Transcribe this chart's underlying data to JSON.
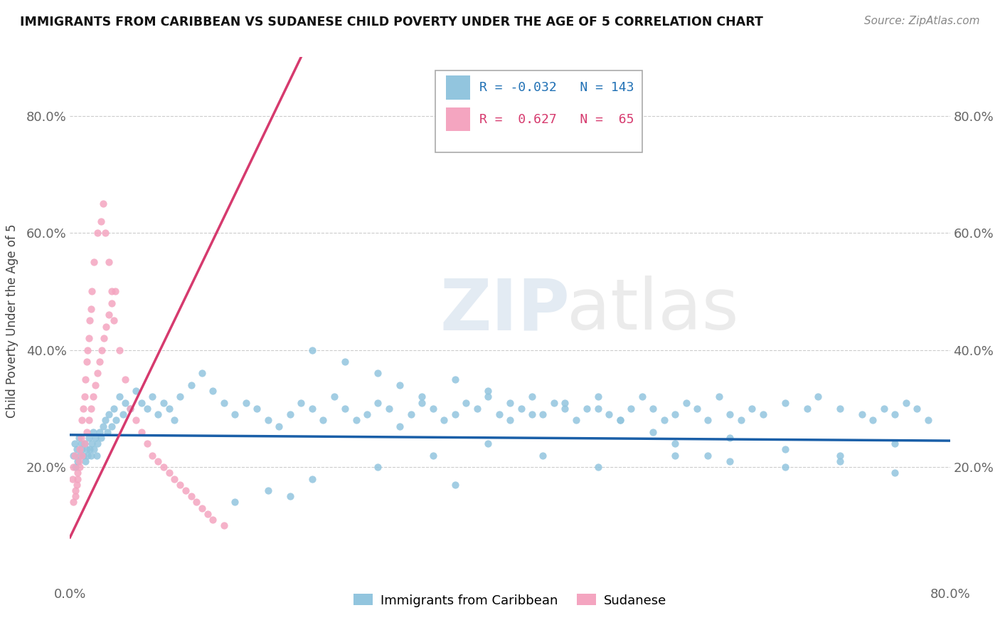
{
  "title": "IMMIGRANTS FROM CARIBBEAN VS SUDANESE CHILD POVERTY UNDER THE AGE OF 5 CORRELATION CHART",
  "source": "Source: ZipAtlas.com",
  "ylabel": "Child Poverty Under the Age of 5",
  "xmin": 0.0,
  "xmax": 0.8,
  "ymin": 0.0,
  "ymax": 0.9,
  "caribbean_color": "#92c5de",
  "sudanese_color": "#f4a5c0",
  "caribbean_line_color": "#1a5fa8",
  "sudanese_line_color": "#d63a6e",
  "R_caribbean": -0.032,
  "N_caribbean": 143,
  "R_sudanese": 0.627,
  "N_sudanese": 65,
  "watermark_zip": "ZIP",
  "watermark_atlas": "atlas",
  "legend_entries": [
    "Immigrants from Caribbean",
    "Sudanese"
  ],
  "car_x": [
    0.003,
    0.004,
    0.005,
    0.006,
    0.007,
    0.008,
    0.009,
    0.01,
    0.011,
    0.012,
    0.013,
    0.014,
    0.015,
    0.016,
    0.017,
    0.018,
    0.019,
    0.02,
    0.021,
    0.022,
    0.023,
    0.024,
    0.025,
    0.027,
    0.028,
    0.03,
    0.032,
    0.034,
    0.035,
    0.038,
    0.04,
    0.042,
    0.045,
    0.048,
    0.05,
    0.055,
    0.06,
    0.065,
    0.07,
    0.075,
    0.08,
    0.085,
    0.09,
    0.095,
    0.1,
    0.11,
    0.12,
    0.13,
    0.14,
    0.15,
    0.16,
    0.17,
    0.18,
    0.19,
    0.2,
    0.21,
    0.22,
    0.23,
    0.24,
    0.25,
    0.26,
    0.27,
    0.28,
    0.29,
    0.3,
    0.31,
    0.32,
    0.33,
    0.34,
    0.35,
    0.36,
    0.37,
    0.38,
    0.39,
    0.4,
    0.41,
    0.42,
    0.43,
    0.44,
    0.45,
    0.46,
    0.47,
    0.48,
    0.49,
    0.5,
    0.51,
    0.52,
    0.53,
    0.54,
    0.55,
    0.56,
    0.57,
    0.58,
    0.59,
    0.6,
    0.61,
    0.62,
    0.63,
    0.65,
    0.67,
    0.68,
    0.7,
    0.72,
    0.73,
    0.74,
    0.75,
    0.76,
    0.77,
    0.78,
    0.22,
    0.25,
    0.28,
    0.3,
    0.32,
    0.35,
    0.38,
    0.4,
    0.42,
    0.45,
    0.48,
    0.5,
    0.53,
    0.55,
    0.58,
    0.6,
    0.65,
    0.7,
    0.75,
    0.55,
    0.6,
    0.65,
    0.7,
    0.75,
    0.35,
    0.2,
    0.15,
    0.18,
    0.22,
    0.28,
    0.33,
    0.38,
    0.43,
    0.48
  ],
  "car_y": [
    0.22,
    0.24,
    0.2,
    0.23,
    0.21,
    0.25,
    0.22,
    0.24,
    0.23,
    0.22,
    0.24,
    0.21,
    0.23,
    0.22,
    0.25,
    0.23,
    0.22,
    0.24,
    0.26,
    0.23,
    0.25,
    0.22,
    0.24,
    0.26,
    0.25,
    0.27,
    0.28,
    0.26,
    0.29,
    0.27,
    0.3,
    0.28,
    0.32,
    0.29,
    0.31,
    0.3,
    0.33,
    0.31,
    0.3,
    0.32,
    0.29,
    0.31,
    0.3,
    0.28,
    0.32,
    0.34,
    0.36,
    0.33,
    0.31,
    0.29,
    0.31,
    0.3,
    0.28,
    0.27,
    0.29,
    0.31,
    0.3,
    0.28,
    0.32,
    0.3,
    0.28,
    0.29,
    0.31,
    0.3,
    0.27,
    0.29,
    0.31,
    0.3,
    0.28,
    0.29,
    0.31,
    0.3,
    0.32,
    0.29,
    0.28,
    0.3,
    0.32,
    0.29,
    0.31,
    0.3,
    0.28,
    0.3,
    0.32,
    0.29,
    0.28,
    0.3,
    0.32,
    0.3,
    0.28,
    0.29,
    0.31,
    0.3,
    0.28,
    0.32,
    0.29,
    0.28,
    0.3,
    0.29,
    0.31,
    0.3,
    0.32,
    0.3,
    0.29,
    0.28,
    0.3,
    0.29,
    0.31,
    0.3,
    0.28,
    0.4,
    0.38,
    0.36,
    0.34,
    0.32,
    0.35,
    0.33,
    0.31,
    0.29,
    0.31,
    0.3,
    0.28,
    0.26,
    0.24,
    0.22,
    0.21,
    0.2,
    0.22,
    0.24,
    0.22,
    0.25,
    0.23,
    0.21,
    0.19,
    0.17,
    0.15,
    0.14,
    0.16,
    0.18,
    0.2,
    0.22,
    0.24,
    0.22,
    0.2
  ],
  "sud_x": [
    0.002,
    0.003,
    0.004,
    0.005,
    0.006,
    0.007,
    0.008,
    0.009,
    0.01,
    0.011,
    0.012,
    0.013,
    0.014,
    0.015,
    0.016,
    0.017,
    0.018,
    0.019,
    0.02,
    0.022,
    0.025,
    0.028,
    0.03,
    0.032,
    0.035,
    0.038,
    0.04,
    0.045,
    0.05,
    0.055,
    0.06,
    0.065,
    0.07,
    0.075,
    0.08,
    0.085,
    0.09,
    0.095,
    0.1,
    0.105,
    0.11,
    0.115,
    0.12,
    0.125,
    0.13,
    0.14,
    0.003,
    0.005,
    0.007,
    0.009,
    0.011,
    0.013,
    0.015,
    0.017,
    0.019,
    0.021,
    0.023,
    0.025,
    0.027,
    0.029,
    0.031,
    0.033,
    0.035,
    0.038,
    0.041
  ],
  "sud_y": [
    0.18,
    0.2,
    0.22,
    0.15,
    0.17,
    0.19,
    0.21,
    0.23,
    0.25,
    0.28,
    0.3,
    0.32,
    0.35,
    0.38,
    0.4,
    0.42,
    0.45,
    0.47,
    0.5,
    0.55,
    0.6,
    0.62,
    0.65,
    0.6,
    0.55,
    0.5,
    0.45,
    0.4,
    0.35,
    0.3,
    0.28,
    0.26,
    0.24,
    0.22,
    0.21,
    0.2,
    0.19,
    0.18,
    0.17,
    0.16,
    0.15,
    0.14,
    0.13,
    0.12,
    0.11,
    0.1,
    0.14,
    0.16,
    0.18,
    0.2,
    0.22,
    0.24,
    0.26,
    0.28,
    0.3,
    0.32,
    0.34,
    0.36,
    0.38,
    0.4,
    0.42,
    0.44,
    0.46,
    0.48,
    0.5
  ],
  "sud_line_x0": 0.0,
  "sud_line_x1": 0.21,
  "sud_line_y0": 0.08,
  "sud_line_y1": 0.9,
  "car_line_x0": 0.0,
  "car_line_x1": 0.8,
  "car_line_y0": 0.255,
  "car_line_y1": 0.245
}
